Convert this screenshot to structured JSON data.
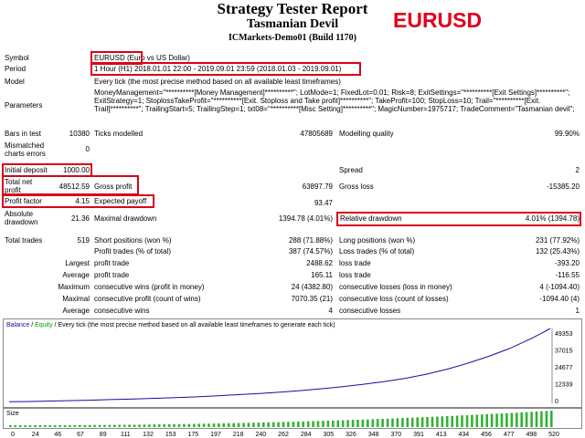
{
  "header": {
    "title": "Strategy Tester Report",
    "expert": "Tasmanian Devil",
    "server": "ICMarkets-Demo01 (Build 1170)",
    "symbol_tag": "EURUSD"
  },
  "colors": {
    "highlight": "#d9001b",
    "symbol_tag": "#e0001b",
    "balance_line": "#1010a0",
    "equity_line": "#00a000",
    "size_bars": "#33b233"
  },
  "rows": {
    "symbol": {
      "label": "Symbol",
      "value": "EURUSD (Euro vs US Dollar)"
    },
    "period": {
      "label": "Period",
      "value": "1 Hour (H1) 2018.01.01 22:00 - 2019.09.01 23:59 (2018.01.03 - 2019.09.01)"
    },
    "model": {
      "label": "Model",
      "value": "Every tick (the most precise method based on all available least timeframes)"
    },
    "parameters": {
      "label": "Parameters",
      "value": "MoneyManagement=\"**********[Money Management]**********\"; LotMode=1; FixedLot=0.01; Risk=8; ExitSettings=\"**********[Exit Settings]**********\"; ExitStrategy=1; StoplossTakeProfit=\"**********[Exit. Stoploss and Take profit]**********\"; TakeProfit=100; StopLoss=10; Trail=\"**********[Exit. Trail]**********\"; TrailingStart=5; TrailingStep=1; txt08=\"**********[Misc Setting]**********\"; MagicNumber=1975717; TradeComment=\"Tasmanian devil\";"
    },
    "bars_in_test": {
      "label": "Bars in test",
      "value": "10380"
    },
    "ticks_modelled": {
      "label": "Ticks modelled",
      "value": "47805689"
    },
    "modelling_quality": {
      "label": "Modelling quality",
      "value": "99.90%"
    },
    "mismatched": {
      "label": "Mismatched charts errors",
      "value": "0"
    },
    "initial_deposit": {
      "label": "Initial deposit",
      "value": "1000.00"
    },
    "spread": {
      "label": "Spread",
      "value": "2"
    },
    "total_net_profit": {
      "label": "Total net profit",
      "value": "48512.59"
    },
    "gross_profit": {
      "label": "Gross profit",
      "value": "63897.79"
    },
    "gross_loss": {
      "label": "Gross loss",
      "value": "-15385.20"
    },
    "profit_factor": {
      "label": "Profit factor",
      "value": "4.15"
    },
    "expected_payoff": {
      "label": "Expected payoff",
      "value": "93.47"
    },
    "absolute_drawdown": {
      "label": "Absolute drawdown",
      "value": "21.36"
    },
    "maximal_drawdown": {
      "label": "Maximal drawdown",
      "value": "1394.78 (4.01%)"
    },
    "relative_drawdown": {
      "label": "Relative drawdown",
      "value": "4.01% (1394.78)"
    },
    "total_trades": {
      "label": "Total trades",
      "value": "519"
    },
    "short_positions": {
      "label": "Short positions (won %)",
      "value": "288 (71.88%)"
    },
    "long_positions": {
      "label": "Long positions (won %)",
      "value": "231 (77.92%)"
    },
    "profit_trades": {
      "label": "Profit trades (% of total)",
      "value": "387 (74.57%)"
    },
    "loss_trades": {
      "label": "Loss trades (% of total)",
      "value": "132 (25.43%)"
    },
    "largest": {
      "label": "Largest",
      "profit_label": "profit trade",
      "profit": "2488.62",
      "loss_label": "loss trade",
      "loss": "-393.20"
    },
    "average": {
      "label": "Average",
      "profit_label": "profit trade",
      "profit": "165.11",
      "loss_label": "loss trade",
      "loss": "-116.55"
    },
    "maximum": {
      "label": "Maximum",
      "profit_label": "consecutive wins (profit in money)",
      "profit": "24 (4382.80)",
      "loss_label": "consecutive losses (loss in money)",
      "loss": "4 (-1094.40)"
    },
    "maximal": {
      "label": "Maximal",
      "profit_label": "consecutive profit (count of wins)",
      "profit": "7070.35 (21)",
      "loss_label": "consecutive loss (count of losses)",
      "loss": "-1094.40 (4)"
    },
    "average_consec": {
      "label": "Average",
      "profit_label": "consecutive wins",
      "profit": "4",
      "loss_label": "consecutive losses",
      "loss": "1"
    }
  },
  "chart": {
    "legend_balance": "Balance",
    "legend_sep1": " / ",
    "legend_equity": "Equity",
    "legend_rest": " / Every tick (the most precise method based on all available least timeframes to generate each tick)",
    "size_label": "Size"
  },
  "chart_data": {
    "type": "line",
    "title": "",
    "y_ticks": [
      "49353",
      "37015",
      "24677",
      "12339",
      "0"
    ],
    "ylim": [
      0,
      49353
    ],
    "xlim": [
      0,
      519
    ],
    "x_ticks": [
      "0",
      "24",
      "46",
      "67",
      "89",
      "111",
      "132",
      "153",
      "175",
      "197",
      "218",
      "240",
      "262",
      "284",
      "305",
      "326",
      "348",
      "370",
      "391",
      "413",
      "434",
      "456",
      "477",
      "498",
      "520"
    ],
    "series": [
      {
        "name": "Balance",
        "x": [
          0,
          20,
          40,
          60,
          80,
          100,
          120,
          140,
          160,
          180,
          200,
          220,
          240,
          260,
          280,
          300,
          320,
          340,
          360,
          380,
          400,
          420,
          440,
          460,
          480,
          500,
          510,
          519
        ],
        "y": [
          1000,
          1200,
          1500,
          1800,
          2100,
          2500,
          2900,
          3300,
          3800,
          4300,
          5000,
          5700,
          6500,
          7400,
          8400,
          9600,
          11000,
          12600,
          14400,
          16500,
          19200,
          22500,
          26500,
          31000,
          36200,
          42500,
          46000,
          49353
        ]
      }
    ]
  }
}
